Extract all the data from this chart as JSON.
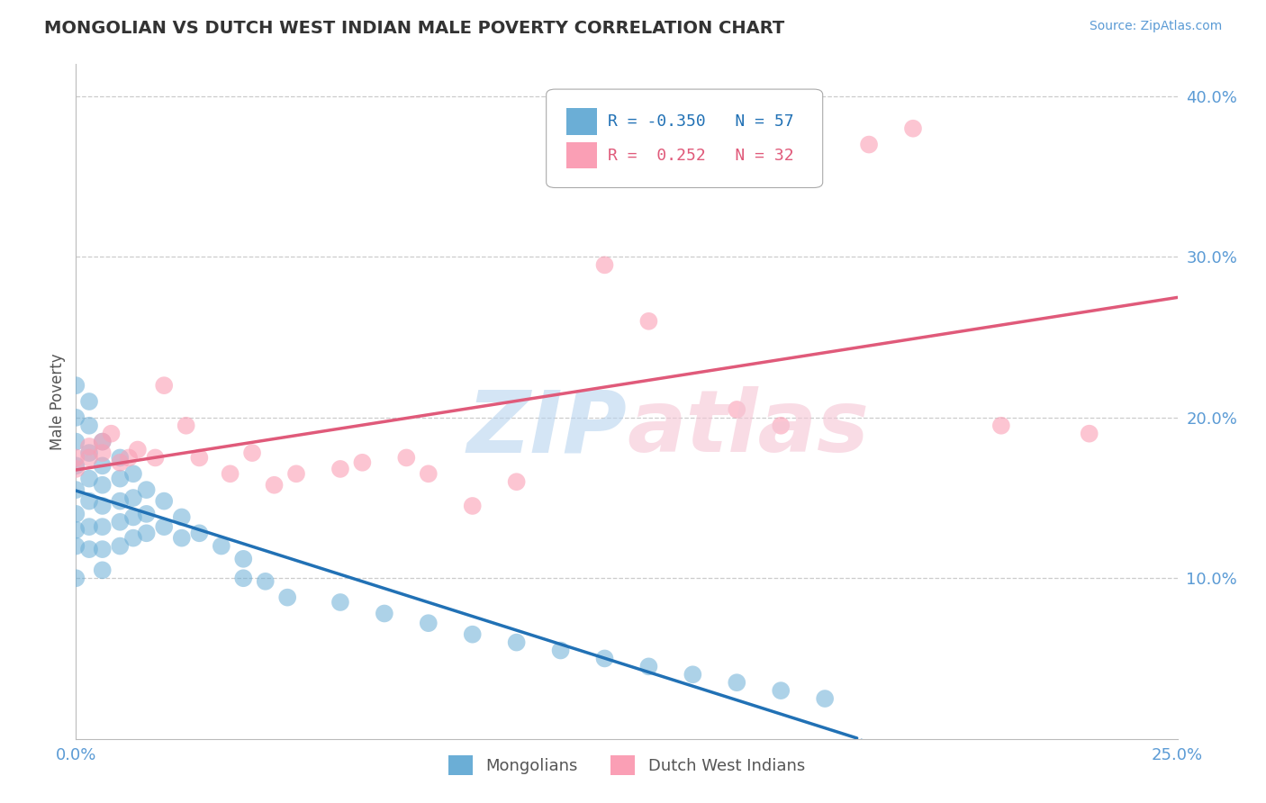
{
  "title": "MONGOLIAN VS DUTCH WEST INDIAN MALE POVERTY CORRELATION CHART",
  "source": "Source: ZipAtlas.com",
  "ylabel": "Male Poverty",
  "xlim": [
    0.0,
    0.25
  ],
  "ylim": [
    0.0,
    0.42
  ],
  "y_ticks_right": [
    0.1,
    0.2,
    0.3,
    0.4
  ],
  "y_tick_labels_right": [
    "10.0%",
    "20.0%",
    "30.0%",
    "40.0%"
  ],
  "grid_color": "#cccccc",
  "background_color": "#ffffff",
  "color_mongolian": "#6baed6",
  "color_dutch": "#fa9fb5",
  "color_line_mongolian": "#2171b5",
  "color_line_dutch": "#e05a7a",
  "legend_label1": "Mongolians",
  "legend_label2": "Dutch West Indians",
  "mongolian_x": [
    0.0,
    0.0,
    0.0,
    0.0,
    0.0,
    0.0,
    0.0,
    0.0,
    0.0,
    0.003,
    0.003,
    0.003,
    0.003,
    0.003,
    0.003,
    0.003,
    0.006,
    0.006,
    0.006,
    0.006,
    0.006,
    0.006,
    0.006,
    0.01,
    0.01,
    0.01,
    0.01,
    0.01,
    0.013,
    0.013,
    0.013,
    0.013,
    0.016,
    0.016,
    0.016,
    0.02,
    0.02,
    0.024,
    0.024,
    0.028,
    0.033,
    0.038,
    0.038,
    0.043,
    0.048,
    0.06,
    0.07,
    0.08,
    0.09,
    0.1,
    0.11,
    0.12,
    0.13,
    0.14,
    0.15,
    0.16,
    0.17
  ],
  "mongolian_y": [
    0.22,
    0.2,
    0.185,
    0.17,
    0.155,
    0.14,
    0.13,
    0.12,
    0.1,
    0.21,
    0.195,
    0.178,
    0.162,
    0.148,
    0.132,
    0.118,
    0.185,
    0.17,
    0.158,
    0.145,
    0.132,
    0.118,
    0.105,
    0.175,
    0.162,
    0.148,
    0.135,
    0.12,
    0.165,
    0.15,
    0.138,
    0.125,
    0.155,
    0.14,
    0.128,
    0.148,
    0.132,
    0.138,
    0.125,
    0.128,
    0.12,
    0.112,
    0.1,
    0.098,
    0.088,
    0.085,
    0.078,
    0.072,
    0.065,
    0.06,
    0.055,
    0.05,
    0.045,
    0.04,
    0.035,
    0.03,
    0.025
  ],
  "dutch_x": [
    0.0,
    0.0,
    0.003,
    0.003,
    0.006,
    0.006,
    0.008,
    0.01,
    0.012,
    0.014,
    0.018,
    0.02,
    0.025,
    0.028,
    0.035,
    0.04,
    0.045,
    0.05,
    0.06,
    0.065,
    0.075,
    0.08,
    0.09,
    0.1,
    0.12,
    0.13,
    0.15,
    0.16,
    0.18,
    0.19,
    0.21,
    0.23
  ],
  "dutch_y": [
    0.175,
    0.168,
    0.175,
    0.182,
    0.178,
    0.185,
    0.19,
    0.172,
    0.175,
    0.18,
    0.175,
    0.22,
    0.195,
    0.175,
    0.165,
    0.178,
    0.158,
    0.165,
    0.168,
    0.172,
    0.175,
    0.165,
    0.145,
    0.16,
    0.295,
    0.26,
    0.205,
    0.195,
    0.37,
    0.38,
    0.195,
    0.19
  ]
}
